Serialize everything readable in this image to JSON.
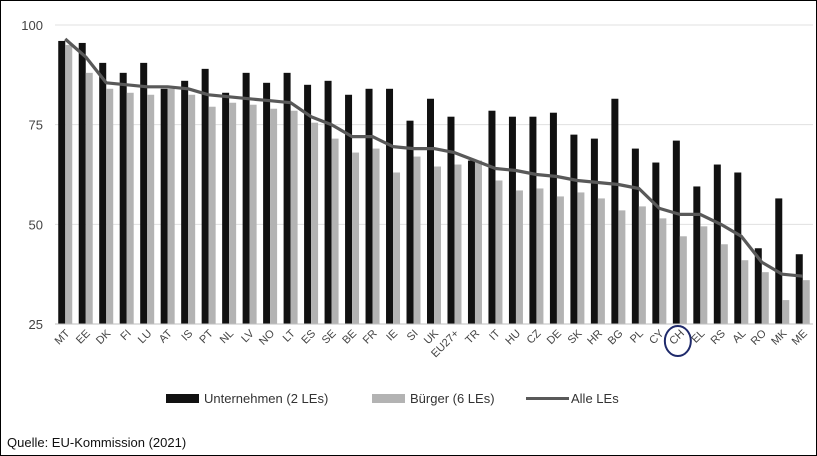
{
  "chart_data": {
    "type": "bar",
    "categories": [
      "MT",
      "EE",
      "DK",
      "FI",
      "LU",
      "AT",
      "IS",
      "PT",
      "NL",
      "LV",
      "NO",
      "LT",
      "ES",
      "SE",
      "BE",
      "FR",
      "IE",
      "SI",
      "UK",
      "EU27+",
      "TR",
      "IT",
      "HU",
      "CZ",
      "DE",
      "SK",
      "HR",
      "BG",
      "PL",
      "CY",
      "CH",
      "EL",
      "RS",
      "AL",
      "RO",
      "MK",
      "ME"
    ],
    "series": [
      {
        "name": "Unternehmen (2 LEs)",
        "kind": "bar",
        "color": "#111111",
        "values": [
          96,
          95.5,
          90.5,
          88,
          90.5,
          84,
          86,
          89,
          83,
          88,
          85.5,
          88,
          85,
          86,
          82.5,
          84,
          84,
          76,
          81.5,
          77,
          66,
          78.5,
          77,
          77,
          78,
          72.5,
          71.5,
          81.5,
          69,
          65.5,
          71,
          59.5,
          65,
          63,
          44,
          56.5,
          42.5
        ]
      },
      {
        "name": "Bürger (6 LEs)",
        "kind": "bar",
        "color": "#b3b3b3",
        "values": [
          95,
          88,
          84,
          83,
          82.5,
          84,
          82.5,
          79.5,
          80.5,
          80,
          79,
          78.5,
          75.5,
          71.5,
          68,
          69,
          63,
          67,
          64.5,
          65,
          66,
          61,
          58.5,
          59,
          57,
          58,
          56.5,
          53.5,
          54.5,
          51.5,
          47,
          49.5,
          45,
          41,
          38,
          31,
          36
        ]
      },
      {
        "name": "Alle LEs",
        "kind": "line",
        "color": "#595959",
        "values": [
          96.5,
          92,
          85.5,
          85,
          84.5,
          84.5,
          84,
          82.5,
          82,
          81.5,
          81,
          80.5,
          77,
          75,
          72,
          72,
          69.5,
          69,
          69,
          68,
          66,
          64,
          63.5,
          62.5,
          62,
          61,
          60.5,
          60,
          59,
          54,
          52.5,
          52.5,
          50,
          47,
          40.5,
          37.5,
          37
        ]
      }
    ],
    "yticks": [
      25,
      50,
      75,
      100
    ],
    "ylim": [
      25,
      100
    ],
    "legend_position": "bottom",
    "highlighted_category": "CH",
    "source": "Quelle: EU-Kommission (2021)"
  }
}
